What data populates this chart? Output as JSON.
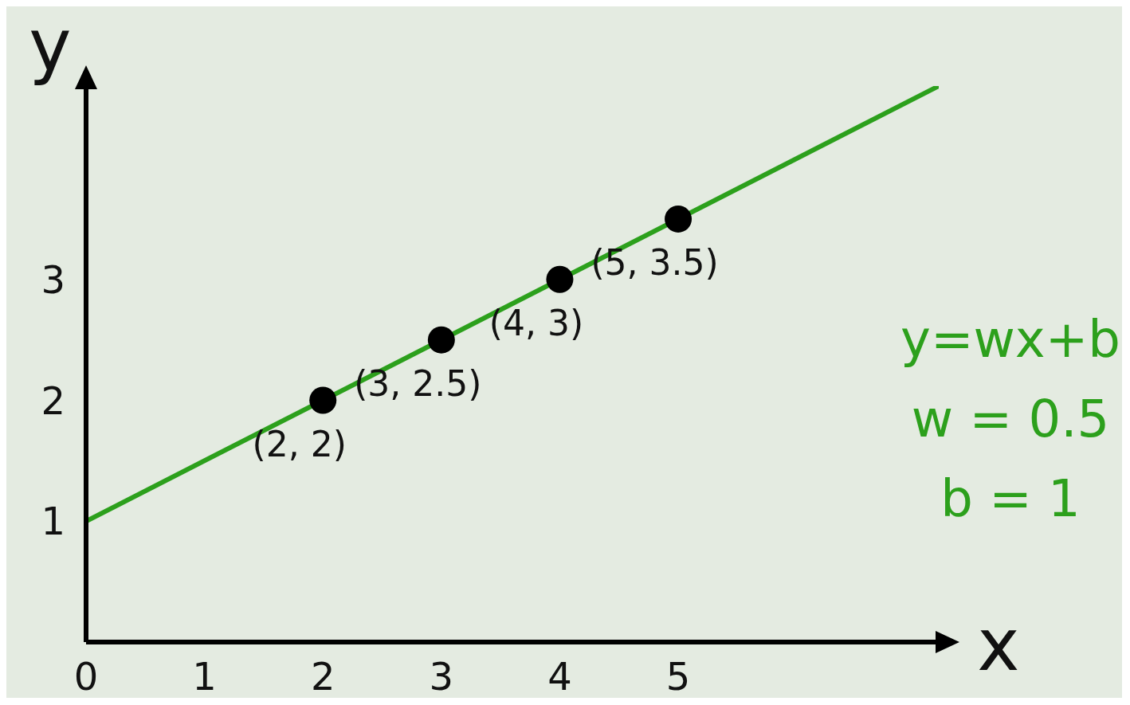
{
  "chart_data": {
    "type": "line",
    "xlabel": "x",
    "ylabel": "y",
    "xlim": [
      0,
      7.2
    ],
    "ylim": [
      0,
      4.6
    ],
    "xticks": [
      0,
      1,
      2,
      3,
      4,
      5
    ],
    "yticks": [
      1,
      2,
      3
    ],
    "grid": false,
    "annotations": [
      "y=wx+b",
      "w = 0.5",
      "b = 1"
    ],
    "series": [
      {
        "x": [
          0,
          7.2
        ],
        "values": [
          1,
          4.6
        ],
        "color": "#2ca01c"
      },
      {
        "type": "scatter",
        "x": [
          2,
          3,
          4,
          5
        ],
        "values": [
          2,
          2.5,
          3,
          3.5
        ],
        "color": "#000000",
        "value_labels": [
          "(2, 2)",
          "(3, 2.5)",
          "(4, 3)",
          "(5, 3.5)"
        ]
      }
    ]
  }
}
